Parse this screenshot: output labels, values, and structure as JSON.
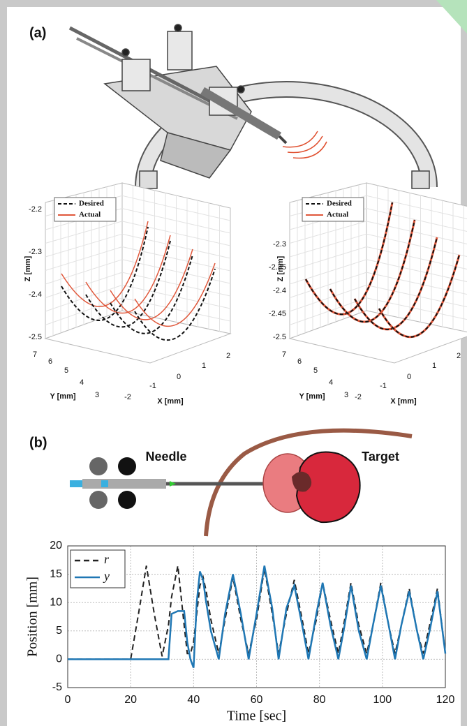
{
  "panel_a": {
    "label": "(a)",
    "plots": [
      {
        "legend": [
          "Desired",
          "Actual"
        ],
        "zlabel": "Z [mm]",
        "ylabel": "Y [mm]",
        "xlabel": "X [mm]",
        "zticks": [
          "-2.2",
          "-2.3",
          "-2.4",
          "-2.5"
        ],
        "yticks": [
          "7",
          "6",
          "5",
          "4",
          "3"
        ],
        "xticks": [
          "-2",
          "-1",
          "0",
          "1",
          "2"
        ]
      },
      {
        "legend": [
          "Desired",
          "Actual"
        ],
        "zlabel": "Z [mm]",
        "ylabel": "Y [mm]",
        "xlabel": "X [mm]",
        "zticks": [
          "-2.3",
          "-2.35",
          "-2.4",
          "-2.45",
          "-2.5"
        ],
        "yticks": [
          "7",
          "6",
          "5",
          "4",
          "3"
        ],
        "xticks": [
          "-2",
          "-1",
          "0",
          "1",
          "2"
        ]
      }
    ]
  },
  "panel_b": {
    "label": "(b)",
    "needle_label": "Needle",
    "target_label": "Target"
  },
  "chart_data": {
    "type": "line",
    "xlabel": "Time [sec]",
    "ylabel": "Position [mm]",
    "x": [
      0,
      20,
      22.5,
      25,
      27.5,
      30,
      32,
      33,
      35,
      37,
      38,
      39,
      40,
      41,
      42,
      43,
      44,
      45.5,
      48,
      50,
      52.5,
      55,
      57.5,
      60,
      62.5,
      65,
      67,
      69.5,
      72,
      74.5,
      76.5,
      79,
      81,
      83.5,
      86,
      88,
      90,
      92.5,
      95,
      97,
      99.5,
      102,
      104,
      106,
      108.5,
      111,
      113,
      115,
      117.5,
      120
    ],
    "series": [
      {
        "name": "r",
        "color": "#222222",
        "dash": "dashed",
        "values": [
          0,
          0,
          8,
          16.5,
          8,
          0.5,
          6,
          11,
          16.5,
          6,
          1,
          1,
          3,
          8,
          13,
          14.5,
          12,
          7,
          1,
          7,
          14.5,
          7,
          1,
          7,
          16,
          8,
          1,
          8,
          14,
          7,
          1,
          7,
          13.5,
          7,
          1,
          7,
          13.5,
          6,
          1,
          6,
          13.5,
          6,
          1,
          6,
          12.5,
          5,
          1,
          6,
          12.5,
          1
        ]
      },
      {
        "name": "y",
        "color": "#1f77b4",
        "dash": "solid",
        "values": [
          0,
          0,
          0,
          0,
          0,
          0,
          0,
          8,
          8.5,
          8.5,
          3,
          0,
          -1.5,
          10,
          15.5,
          14,
          10,
          5,
          0,
          8,
          15,
          8,
          0,
          8,
          16.5,
          9,
          0,
          9,
          13,
          6,
          0,
          8,
          13.5,
          6,
          0,
          6,
          13,
          5,
          0,
          6,
          13,
          6,
          0,
          6,
          12,
          5,
          0,
          5,
          12,
          1
        ]
      }
    ],
    "xlim": [
      0,
      120
    ],
    "xticks": [
      0,
      20,
      40,
      60,
      80,
      100,
      120
    ],
    "ylim": [
      -5,
      20
    ],
    "yticks": [
      -5,
      0,
      5,
      10,
      15,
      20
    ],
    "grid": true,
    "legend": "upper left"
  }
}
